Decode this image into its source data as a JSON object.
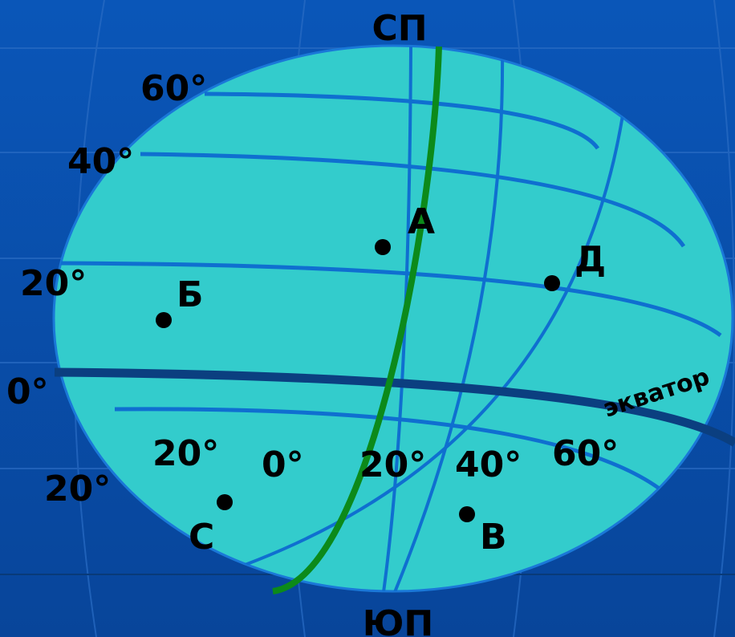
{
  "colors": {
    "background_top": "#0a56b8",
    "background_bottom": "#08459a",
    "globe_fill": "#33cccc",
    "graticule": "#0f6fd0",
    "equator": "#0b3f80",
    "prime_meridian": "#0c8a1a",
    "text": "#000000"
  },
  "poles": {
    "north": "СП",
    "south": "ЮП"
  },
  "latitude_labels": {
    "lat60": "60°",
    "lat40": "40°",
    "lat20n": "20°",
    "lat0": "0°",
    "lat20s": "20°"
  },
  "longitude_labels": {
    "lon20w": "20°",
    "lon0": "0°",
    "lon20e": "20°",
    "lon40e": "40°",
    "lon60e": "60°"
  },
  "equator_label": "экватор",
  "points": [
    {
      "id": "a",
      "label": "А"
    },
    {
      "id": "b",
      "label": "Б"
    },
    {
      "id": "d",
      "label": "Д"
    },
    {
      "id": "s",
      "label": "С"
    },
    {
      "id": "v",
      "label": "В"
    }
  ]
}
